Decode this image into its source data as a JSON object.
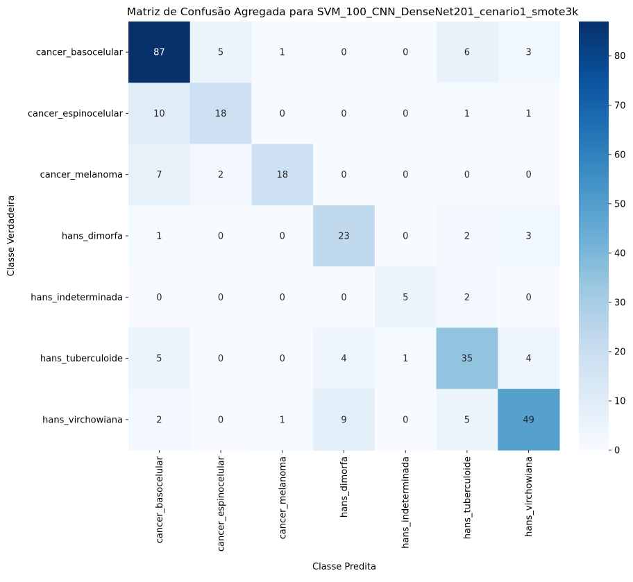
{
  "chart_data": {
    "type": "heatmap",
    "title": "Matriz de Confusão Agregada para SVM_100_CNN_DenseNet201_cenario1_smote3k",
    "xlabel": "Classe Predita",
    "ylabel": "Classe Verdadeira",
    "x_categories": [
      "cancer_basocelular",
      "cancer_espinocelular",
      "cancer_melanoma",
      "hans_dimorfa",
      "hans_indeterminada",
      "hans_tuberculoide",
      "hans_virchowiana"
    ],
    "y_categories": [
      "cancer_basocelular",
      "cancer_espinocelular",
      "cancer_melanoma",
      "hans_dimorfa",
      "hans_indeterminada",
      "hans_tuberculoide",
      "hans_virchowiana"
    ],
    "values": [
      [
        87,
        5,
        1,
        0,
        0,
        6,
        3
      ],
      [
        10,
        18,
        0,
        0,
        0,
        1,
        1
      ],
      [
        7,
        2,
        18,
        0,
        0,
        0,
        0
      ],
      [
        1,
        0,
        0,
        23,
        0,
        2,
        3
      ],
      [
        0,
        0,
        0,
        0,
        5,
        2,
        0
      ],
      [
        5,
        0,
        0,
        4,
        1,
        35,
        4
      ],
      [
        2,
        0,
        1,
        9,
        0,
        5,
        49
      ]
    ],
    "colormap": "Blues",
    "colorbar": {
      "range": [
        0,
        87
      ],
      "ticks": [
        0,
        10,
        20,
        30,
        40,
        50,
        60,
        70,
        80
      ]
    },
    "grid": false,
    "legend": "colorbar-right"
  }
}
